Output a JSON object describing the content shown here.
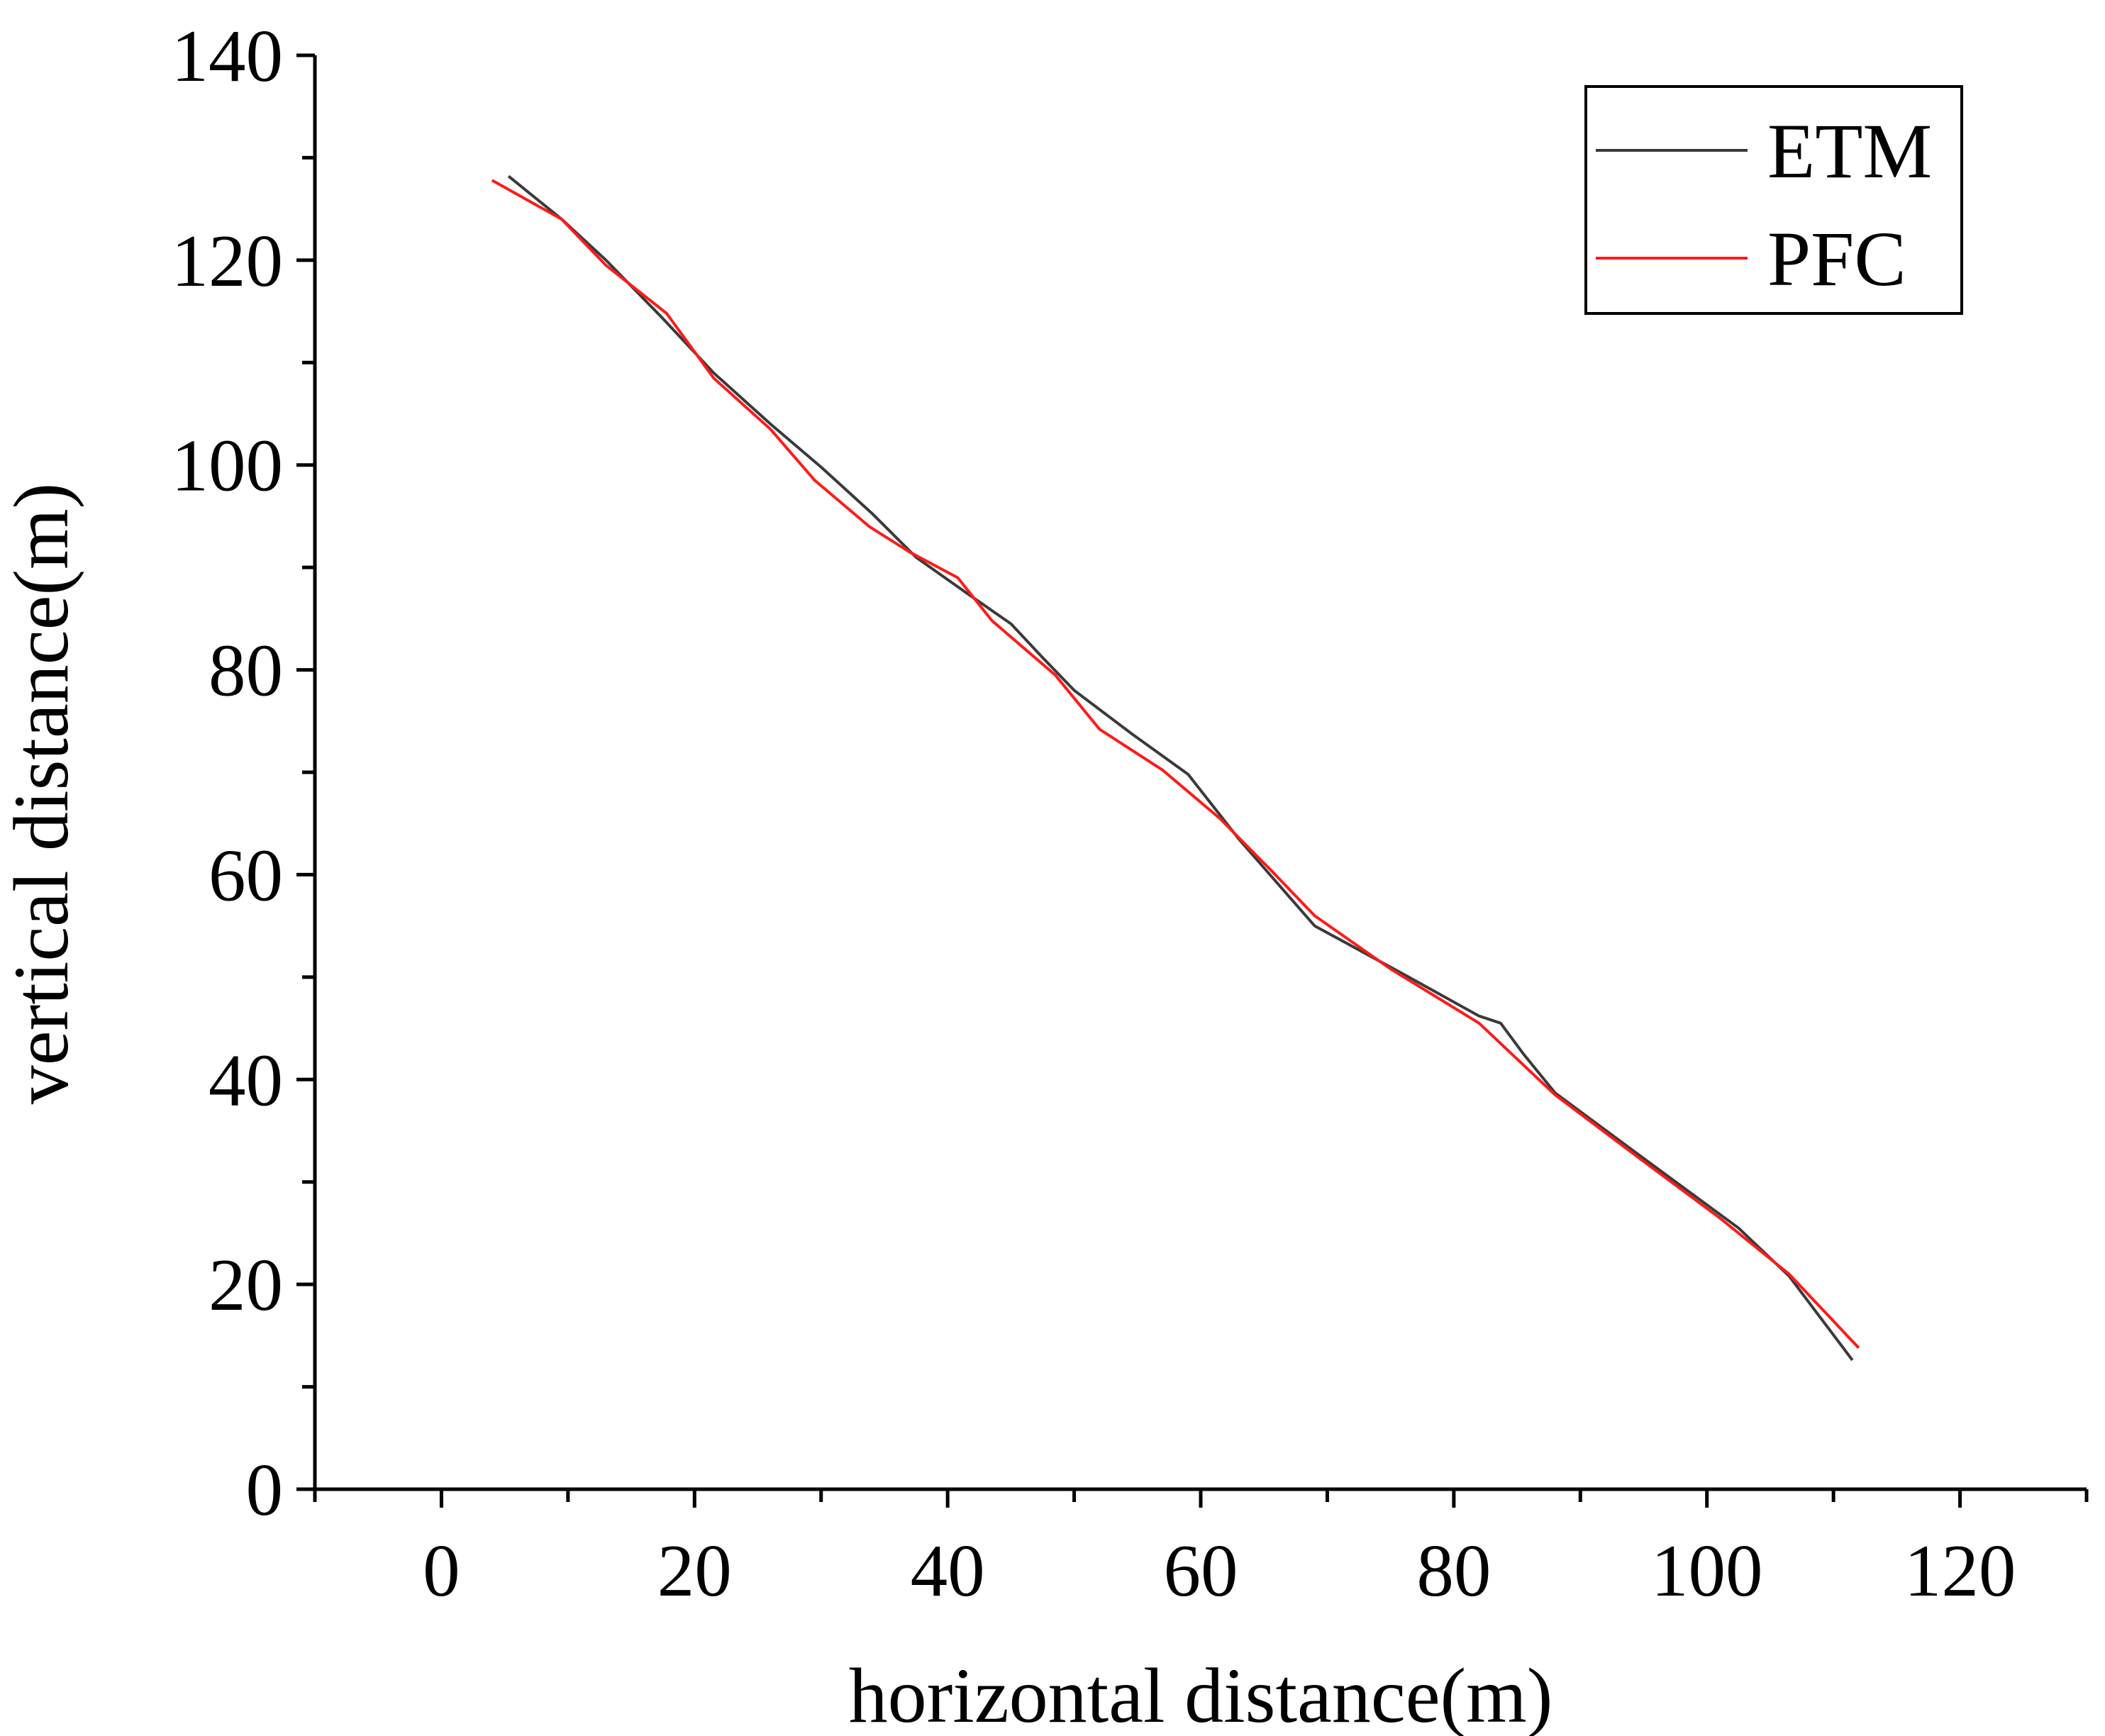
{
  "chart_data": {
    "type": "line",
    "title": "",
    "xlabel": "horizontal distance(m)",
    "ylabel": "vertical distance(m)",
    "xlim": [
      -10,
      130
    ],
    "ylim": [
      0,
      140
    ],
    "x_ticks": [
      0,
      20,
      40,
      60,
      80,
      100,
      120
    ],
    "y_ticks": [
      0,
      20,
      40,
      60,
      80,
      100,
      120,
      140
    ],
    "x_tick_labels": [
      "0",
      "20",
      "40",
      "60",
      "80",
      "100",
      "120"
    ],
    "y_tick_labels": [
      "0",
      "20",
      "40",
      "60",
      "80",
      "100",
      "120",
      "140"
    ],
    "grid": false,
    "legend_position": "top-right",
    "series": [
      {
        "name": "ETM",
        "color": "#3a3a3a",
        "x": [
          5.3,
          9.5,
          13.0,
          17.5,
          21.5,
          26.0,
          30.0,
          34.0,
          37.5,
          41.5,
          45.0,
          47.5,
          50.0,
          54.5,
          59.0,
          63.0,
          69.0,
          76.0,
          82.0,
          83.7,
          85.5,
          88.0,
          95.0,
          102.5,
          106.5,
          111.5
        ],
        "y": [
          128.2,
          124.0,
          120.0,
          114.3,
          109.0,
          104.0,
          99.8,
          95.3,
          91.0,
          87.5,
          84.5,
          81.2,
          78.0,
          73.8,
          69.8,
          63.5,
          55.0,
          50.3,
          46.2,
          45.5,
          42.5,
          38.7,
          32.3,
          25.5,
          20.8,
          12.6
        ]
      },
      {
        "name": "PFC",
        "color": "#ff1a1a",
        "x": [
          4.0,
          9.5,
          13.0,
          17.8,
          21.5,
          26.0,
          29.5,
          33.8,
          37.0,
          40.8,
          43.5,
          48.5,
          52.0,
          57.0,
          61.5,
          65.5,
          69.0,
          75.0,
          82.0,
          88.0,
          95.0,
          101.0,
          106.5,
          112.0
        ],
        "y": [
          127.8,
          124.0,
          119.5,
          114.8,
          108.5,
          103.5,
          98.5,
          94.0,
          91.5,
          89.0,
          84.8,
          79.5,
          74.2,
          70.2,
          65.5,
          60.5,
          56.0,
          50.8,
          45.5,
          38.5,
          32.0,
          26.5,
          21.0,
          13.8
        ]
      }
    ]
  }
}
